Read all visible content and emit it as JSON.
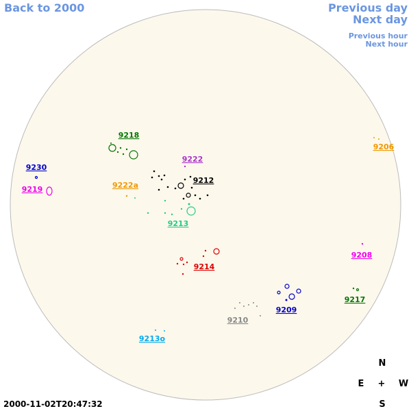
{
  "nav": {
    "back": "Back to 2000",
    "previous_day": "Previous day",
    "next_day": "Next day",
    "previous_hour": "Previous hour",
    "next_hour": "Next hour"
  },
  "regions": [
    "9218",
    "9230",
    "9219",
    "9222",
    "9222a",
    "9212",
    "9213",
    "9206",
    "9208",
    "9214",
    "9209",
    "9217",
    "9210",
    "9213o"
  ],
  "compass": {
    "north": "N",
    "east": "E",
    "center": "+",
    "west": "W",
    "south": "S"
  },
  "timestamp": "2000-11-02T20:47:32"
}
